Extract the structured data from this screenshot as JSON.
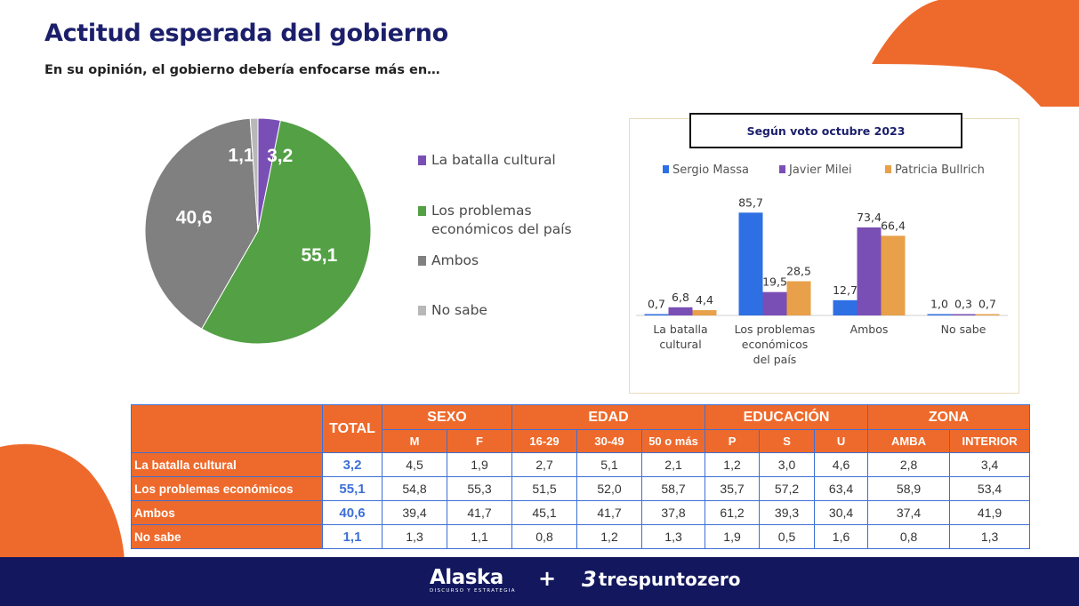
{
  "title": "Actitud esperada del gobierno",
  "subtitle": "En su opinión, el gobierno debería enfocarse más en…",
  "colors": {
    "purple": "#7a4fb5",
    "green": "#53a045",
    "darkgray": "#808080",
    "lightgray": "#b8b8b8",
    "blue": "#2f6fe4",
    "gold": "#e8a04a",
    "orange": "#ee6a2c",
    "navy": "#12175e"
  },
  "chart_data": [
    {
      "type": "pie",
      "categories": [
        "La batalla cultural",
        "Los problemas económicos del país",
        "Ambos",
        "No sabe"
      ],
      "values": [
        3.2,
        55.1,
        40.6,
        1.1
      ],
      "labels": [
        "3,2",
        "55,1",
        "40,6",
        "1,1"
      ],
      "legend": [
        {
          "line1": "La batalla cultural",
          "line2": ""
        },
        {
          "line1": "Los problemas",
          "line2": "económicos del país"
        },
        {
          "line1": "Ambos",
          "line2": ""
        },
        {
          "line1": "No sabe",
          "line2": ""
        }
      ]
    },
    {
      "type": "bar",
      "title": "Según voto octubre 2023",
      "categories": [
        [
          "La batalla",
          "cultural"
        ],
        [
          "Los problemas",
          "económicos",
          "del país"
        ],
        [
          "Ambos"
        ],
        [
          "No sabe"
        ]
      ],
      "series": [
        {
          "name": "Sergio Massa",
          "values": [
            0.7,
            85.7,
            12.7,
            1.0
          ],
          "labels": [
            "0,7",
            "85,7",
            "12,7",
            "1,0"
          ]
        },
        {
          "name": "Javier Milei",
          "values": [
            6.8,
            19.5,
            73.4,
            0.3
          ],
          "labels": [
            "6,8",
            "19,5",
            "73,4",
            "0,3"
          ]
        },
        {
          "name": "Patricia Bullrich",
          "values": [
            4.4,
            28.5,
            66.4,
            0.7
          ],
          "labels": [
            "4,4",
            "28,5",
            "66,4",
            "0,7"
          ]
        }
      ],
      "ylim": [
        0,
        100
      ]
    }
  ],
  "table": {
    "total_header": "TOTAL",
    "groups": [
      "SEXO",
      "EDAD",
      "EDUCACIÓN",
      "ZONA"
    ],
    "subheaders": [
      "M",
      "F",
      "16-29",
      "30-49",
      "50 o más",
      "P",
      "S",
      "U",
      "AMBA",
      "INTERIOR"
    ],
    "rows": [
      {
        "label": "La batalla cultural",
        "total": "3,2",
        "values": [
          "4,5",
          "1,9",
          "2,7",
          "5,1",
          "2,1",
          "1,2",
          "3,0",
          "4,6",
          "2,8",
          "3,4"
        ]
      },
      {
        "label": "Los problemas económicos",
        "total": "55,1",
        "values": [
          "54,8",
          "55,3",
          "51,5",
          "52,0",
          "58,7",
          "35,7",
          "57,2",
          "63,4",
          "58,9",
          "53,4"
        ]
      },
      {
        "label": "Ambos",
        "total": "40,6",
        "values": [
          "39,4",
          "41,7",
          "45,1",
          "41,7",
          "37,8",
          "61,2",
          "39,3",
          "30,4",
          "37,4",
          "41,9"
        ]
      },
      {
        "label": "No sabe",
        "total": "1,1",
        "values": [
          "1,3",
          "1,1",
          "0,8",
          "1,2",
          "1,3",
          "1,9",
          "0,5",
          "1,6",
          "0,8",
          "1,3"
        ]
      }
    ]
  },
  "footer": {
    "logo_left": "Alaska",
    "logo_left_tag": "DISCURSO Y ESTRATEGIA",
    "plus": "+",
    "logo_right_mark": "3",
    "logo_right": "trespuntozero"
  }
}
